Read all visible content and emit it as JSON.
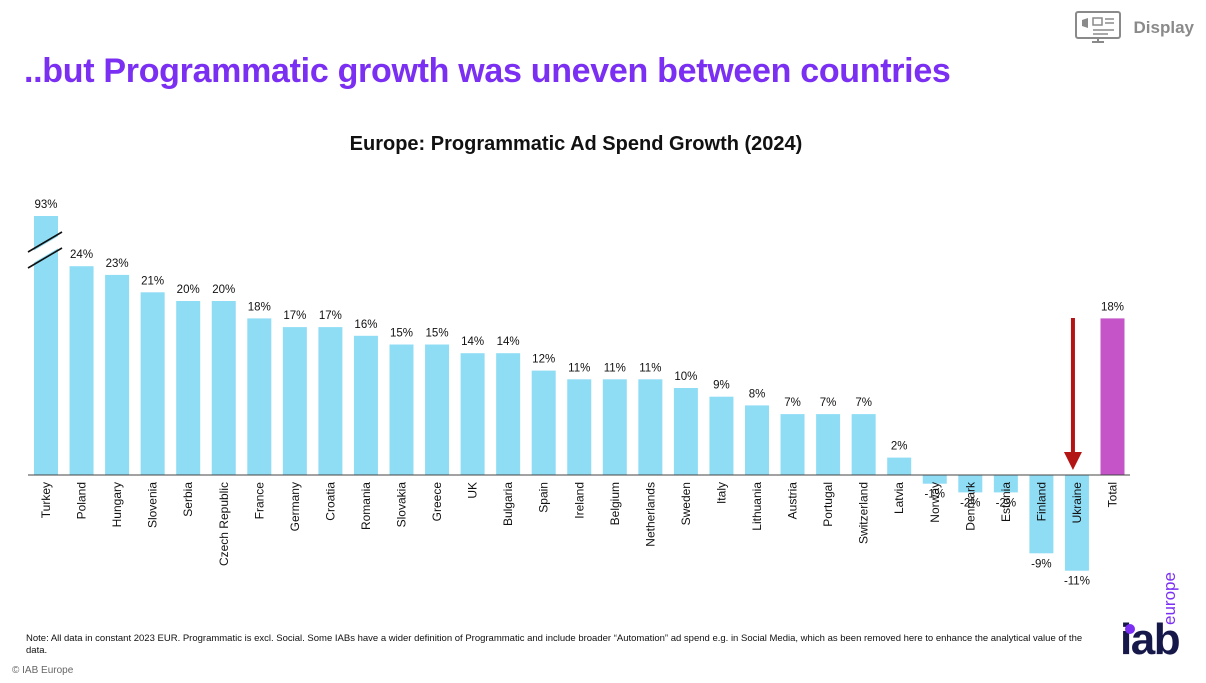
{
  "header": {
    "title": "..but Programmatic growth was uneven between countries",
    "badge_label": "Display",
    "badge_icon": "display-monitor-icon"
  },
  "chart_data": {
    "type": "bar",
    "title": "Europe: Programmatic Ad Spend Growth (2024)",
    "categories": [
      "Turkey",
      "Poland",
      "Hungary",
      "Slovenia",
      "Serbia",
      "Czech Republic",
      "France",
      "Germany",
      "Croatia",
      "Romania",
      "Slovakia",
      "Greece",
      "UK",
      "Bulgaria",
      "Spain",
      "Ireland",
      "Belgium",
      "Netherlands",
      "Sweden",
      "Italy",
      "Lithuania",
      "Austria",
      "Portugal",
      "Switzerland",
      "Latvia",
      "Norway",
      "Denmark",
      "Estonia",
      "Finland",
      "Ukraine",
      "Total"
    ],
    "values": [
      93,
      24,
      23,
      21,
      20,
      20,
      18,
      17,
      17,
      16,
      15,
      15,
      14,
      14,
      12,
      11,
      11,
      11,
      10,
      9,
      8,
      7,
      7,
      7,
      2,
      -1,
      -2,
      -2,
      -9,
      -11,
      18
    ],
    "value_labels": [
      "93%",
      "24%",
      "23%",
      "21%",
      "20%",
      "20%",
      "18%",
      "17%",
      "17%",
      "16%",
      "15%",
      "15%",
      "14%",
      "14%",
      "12%",
      "11%",
      "11%",
      "11%",
      "10%",
      "9%",
      "8%",
      "7%",
      "7%",
      "7%",
      "2%",
      "-1%",
      "-2%",
      "-2%",
      "-9%",
      "-11%",
      "18%"
    ],
    "axis_break_category": "Turkey",
    "highlight_category": "Ukraine",
    "xlabel": "",
    "ylabel": "",
    "colors": {
      "bar": "#8fdcf5",
      "total": "#c554c8",
      "arrow": "#b31515",
      "axis": "#444444"
    }
  },
  "footer": {
    "note": "Note: All data in constant 2023 EUR. Programmatic is excl. Social. Some IABs have a wider definition of Programmatic and include broader “Automation” ad spend e.g. in Social Media, which as been removed here to enhance the analytical value of the data.",
    "copyright": "© IAB Europe",
    "logo_main": "iab",
    "logo_sub": "europe"
  }
}
